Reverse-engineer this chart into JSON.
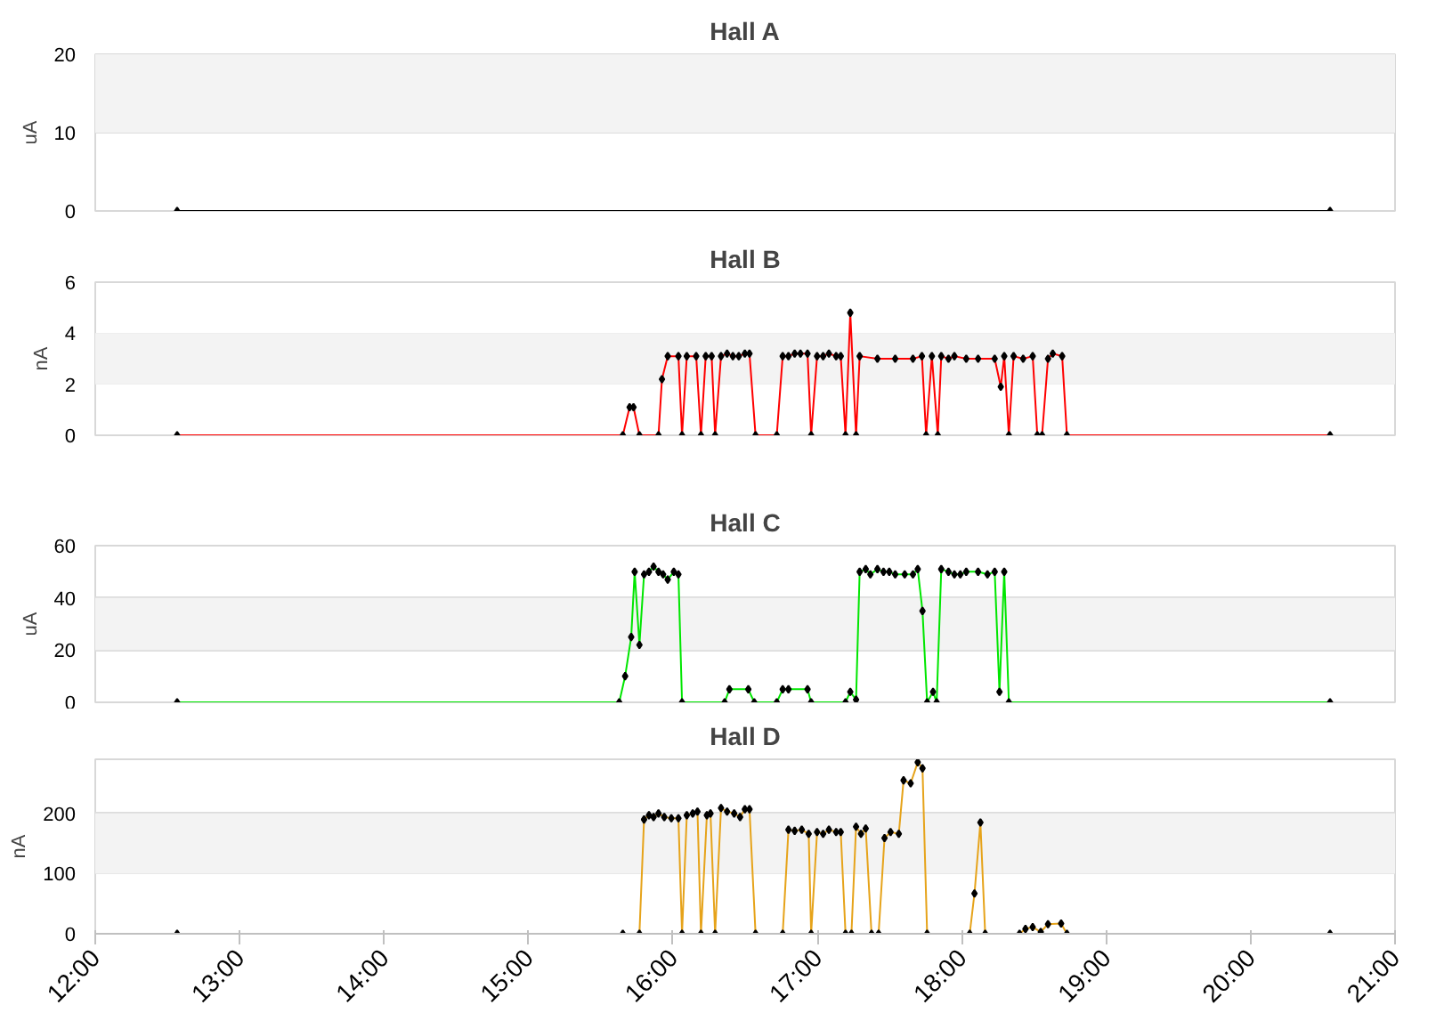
{
  "chart_data": [
    {
      "type": "line",
      "title": "Hall A",
      "ylabel": "uA",
      "xlim": [
        12,
        21
      ],
      "ylim": [
        0,
        20
      ],
      "yticks": [
        0,
        10,
        20
      ],
      "grid": "y",
      "tick_labels": "y",
      "marker": "diamond",
      "line_style": "solid",
      "bands": [
        {
          "axis": "y",
          "from": 10,
          "to": 20,
          "color": "#f3f3f3"
        }
      ],
      "x": [
        12.567,
        20.55
      ],
      "series": [
        {
          "color": "#000000",
          "values": [
            0,
            0
          ]
        }
      ]
    },
    {
      "type": "line",
      "title": "Hall B",
      "ylabel": "nA",
      "xlim": [
        12,
        21
      ],
      "ylim": [
        0,
        6
      ],
      "yticks": [
        0,
        2,
        4,
        6
      ],
      "grid": "y",
      "tick_labels": "y",
      "marker": "diamond",
      "line_style": "solid",
      "bands": [
        {
          "axis": "y",
          "from": 2,
          "to": 4,
          "color": "#f3f3f3"
        }
      ],
      "x": [
        12.567,
        15.653,
        15.7,
        15.727,
        15.768,
        15.9,
        15.924,
        15.964,
        16.038,
        16.063,
        16.096,
        16.161,
        16.194,
        16.227,
        16.268,
        16.292,
        16.333,
        16.375,
        16.415,
        16.456,
        16.498,
        16.53,
        16.572,
        16.719,
        16.76,
        16.8,
        16.843,
        16.883,
        16.932,
        16.957,
        16.998,
        17.04,
        17.08,
        17.13,
        17.162,
        17.195,
        17.228,
        17.268,
        17.293,
        17.416,
        17.539,
        17.662,
        17.724,
        17.753,
        17.793,
        17.834,
        17.858,
        17.908,
        17.949,
        18.031,
        18.113,
        18.228,
        18.27,
        18.294,
        18.326,
        18.359,
        18.425,
        18.491,
        18.523,
        18.556,
        18.597,
        18.63,
        18.695,
        18.728,
        20.55
      ],
      "series": [
        {
          "color": "#ff0000",
          "values": [
            0,
            0,
            1.1,
            1.1,
            0,
            0,
            2.2,
            3.1,
            3.1,
            0,
            3.1,
            3.1,
            0,
            3.1,
            3.1,
            0,
            3.1,
            3.2,
            3.1,
            3.1,
            3.2,
            3.2,
            0,
            0,
            3.1,
            3.1,
            3.2,
            3.2,
            3.2,
            0,
            3.1,
            3.1,
            3.2,
            3.1,
            3.1,
            0,
            4.8,
            0,
            3.1,
            3.0,
            3.0,
            3.0,
            3.1,
            0,
            3.1,
            0,
            3.1,
            3.0,
            3.1,
            3.0,
            3.0,
            3.0,
            1.9,
            3.1,
            0,
            3.1,
            3.0,
            3.1,
            0,
            0,
            3.0,
            3.2,
            3.1,
            0,
            0
          ]
        }
      ]
    },
    {
      "type": "line",
      "title": "Hall C",
      "ylabel": "uA",
      "xlim": [
        12,
        21
      ],
      "ylim": [
        0,
        60
      ],
      "yticks": [
        0,
        20,
        40,
        60
      ],
      "grid": "y",
      "tick_labels": "y",
      "marker": "diamond",
      "line_style": "solid",
      "bands": [
        {
          "axis": "y",
          "from": 20,
          "to": 40,
          "color": "#f3f3f3"
        }
      ],
      "x": [
        12.567,
        15.628,
        15.669,
        15.711,
        15.735,
        15.768,
        15.8,
        15.834,
        15.866,
        15.9,
        15.932,
        15.964,
        16.006,
        16.038,
        16.063,
        16.358,
        16.391,
        16.522,
        16.563,
        16.719,
        16.76,
        16.8,
        16.932,
        16.957,
        17.195,
        17.228,
        17.268,
        17.293,
        17.335,
        17.367,
        17.416,
        17.458,
        17.498,
        17.539,
        17.605,
        17.662,
        17.695,
        17.728,
        17.76,
        17.801,
        17.826,
        17.858,
        17.908,
        17.949,
        17.99,
        18.031,
        18.113,
        18.178,
        18.228,
        18.261,
        18.294,
        18.326,
        20.55
      ],
      "series": [
        {
          "color": "#00e600",
          "values": [
            0,
            0,
            10,
            25,
            50,
            22,
            49,
            50,
            52,
            50,
            49,
            47,
            50,
            49,
            0,
            0,
            5,
            5,
            0,
            0,
            5,
            5,
            5,
            0,
            0,
            4,
            1,
            50,
            51,
            49,
            51,
            50,
            50,
            49,
            49,
            49,
            51,
            35,
            0,
            4,
            0,
            51,
            50,
            49,
            49,
            50,
            50,
            49,
            50,
            4,
            50,
            0,
            0
          ]
        }
      ]
    },
    {
      "type": "line",
      "title": "Hall D",
      "ylabel": "nA",
      "xlim": [
        12,
        21
      ],
      "ylim": [
        0,
        290
      ],
      "yticks": [
        0,
        100,
        200
      ],
      "grid": "y",
      "marker": "diamond",
      "line_style": "solid",
      "xticks": [
        {
          "value": 12,
          "label": "12:00"
        },
        {
          "value": 13,
          "label": "13:00"
        },
        {
          "value": 14,
          "label": "14:00"
        },
        {
          "value": 15,
          "label": "15:00"
        },
        {
          "value": 16,
          "label": "16:00"
        },
        {
          "value": 17,
          "label": "17:00"
        },
        {
          "value": 18,
          "label": "18:00"
        },
        {
          "value": 19,
          "label": "19:00"
        },
        {
          "value": 20,
          "label": "20:00"
        },
        {
          "value": 21,
          "label": "21:00"
        }
      ],
      "bands": [
        {
          "axis": "y",
          "from": 100,
          "to": 200,
          "color": "#f3f3f3"
        }
      ],
      "x": [
        12.567,
        15.653,
        15.715,
        15.768,
        15.8,
        15.834,
        15.866,
        15.9,
        15.94,
        15.989,
        16.038,
        16.063,
        16.096,
        16.137,
        16.17,
        16.194,
        16.235,
        16.26,
        16.292,
        16.333,
        16.375,
        16.424,
        16.465,
        16.498,
        16.53,
        16.572,
        16.76,
        16.8,
        16.843,
        16.892,
        16.94,
        16.957,
        16.998,
        17.04,
        17.08,
        17.13,
        17.162,
        17.195,
        17.236,
        17.268,
        17.302,
        17.335,
        17.375,
        17.424,
        17.465,
        17.507,
        17.564,
        17.597,
        17.646,
        17.695,
        17.728,
        17.76,
        18.055,
        18.088,
        18.129,
        18.162,
        18.4,
        18.441,
        18.491,
        18.547,
        18.597,
        18.688,
        18.728,
        20.55
      ],
      "series": [
        {
          "color": "#e6a31a",
          "values": [
            0,
            0,
            null,
            0,
            190,
            197,
            194,
            200,
            194,
            192,
            192,
            0,
            197,
            200,
            203,
            0,
            197,
            200,
            0,
            209,
            203,
            200,
            194,
            207,
            207,
            0,
            0,
            173,
            171,
            173,
            166,
            0,
            169,
            166,
            173,
            169,
            169,
            0,
            0,
            178,
            166,
            175,
            0,
            0,
            159,
            169,
            166,
            255,
            250,
            285,
            275,
            0,
            0,
            67,
            185,
            0,
            0,
            8,
            11,
            3,
            16,
            17,
            0,
            0
          ]
        }
      ]
    }
  ]
}
